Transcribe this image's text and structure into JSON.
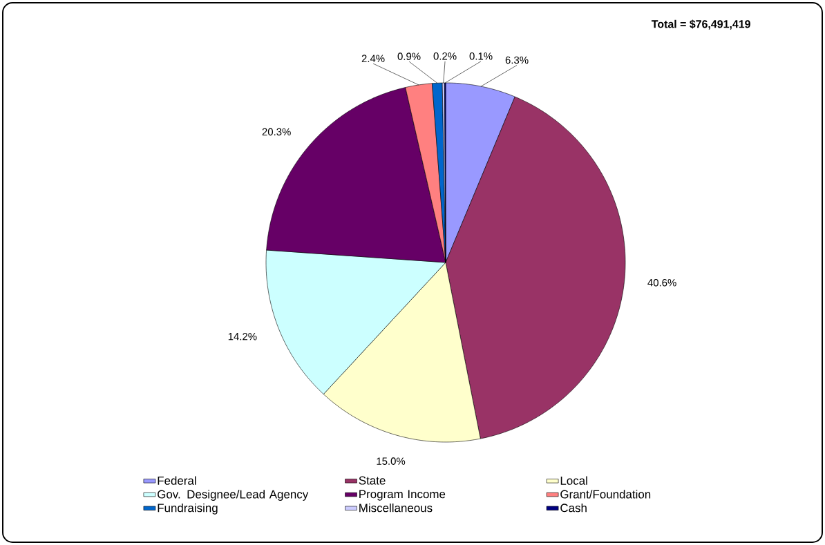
{
  "chart_data": {
    "type": "pie",
    "categories": [
      "Federal",
      "State",
      "Local",
      "Gov. Designee/Lead Agency",
      "Program Income",
      "Grant/Foundation",
      "Fundraising",
      "Miscellaneous",
      "Cash"
    ],
    "values": [
      6.3,
      40.6,
      15.0,
      14.2,
      20.3,
      2.4,
      0.9,
      0.2,
      0.1
    ],
    "colors": [
      "#9999ff",
      "#993366",
      "#ffffcc",
      "#ccffff",
      "#660066",
      "#ff8080",
      "#0066cc",
      "#ccccff",
      "#000080"
    ],
    "value_labels": [
      "6.3%",
      "40.6%",
      "15.0%",
      "14.2%",
      "20.3%",
      "2.4%",
      "0.9%",
      "0.2%",
      "0.1%"
    ],
    "legend": "bottom",
    "annotations": [
      "Total = $76,491,419"
    ]
  }
}
